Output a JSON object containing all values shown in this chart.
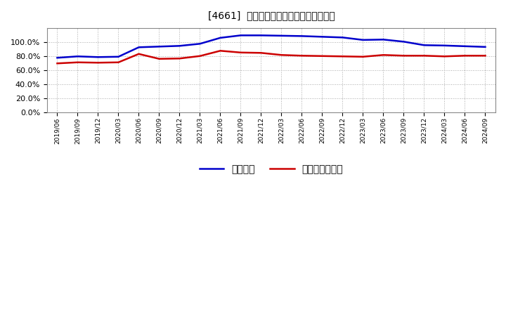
{
  "title": "[4661]  固定比率、固定長期適合率の推移",
  "x_labels": [
    "2019/06",
    "2019/09",
    "2019/12",
    "2020/03",
    "2020/06",
    "2020/09",
    "2020/12",
    "2021/03",
    "2021/06",
    "2021/09",
    "2021/12",
    "2022/03",
    "2022/06",
    "2022/09",
    "2022/12",
    "2023/03",
    "2023/06",
    "2023/09",
    "2023/12",
    "2024/03",
    "2024/06",
    "2024/09"
  ],
  "fixed_ratio": [
    77.5,
    79.5,
    78.5,
    79.0,
    92.5,
    93.5,
    94.5,
    97.5,
    106.0,
    109.5,
    109.5,
    109.0,
    108.5,
    107.5,
    106.5,
    103.0,
    103.5,
    100.5,
    95.5,
    95.0,
    94.0,
    93.0
  ],
  "fixed_longterm_ratio": [
    69.5,
    71.0,
    70.5,
    71.0,
    83.0,
    76.0,
    76.5,
    80.0,
    87.5,
    85.0,
    84.5,
    81.5,
    80.5,
    80.0,
    79.5,
    79.0,
    81.5,
    80.5,
    80.5,
    79.5,
    80.5,
    80.5
  ],
  "line1_color": "#0000cc",
  "line2_color": "#cc0000",
  "line1_label": "固定比率",
  "line2_label": "固定長期適合率",
  "ylim": [
    0,
    120
  ],
  "yticks": [
    0,
    20,
    40,
    60,
    80,
    100
  ],
  "background_color": "#ffffff",
  "grid_color": "#aaaaaa",
  "title_fontsize": 12
}
